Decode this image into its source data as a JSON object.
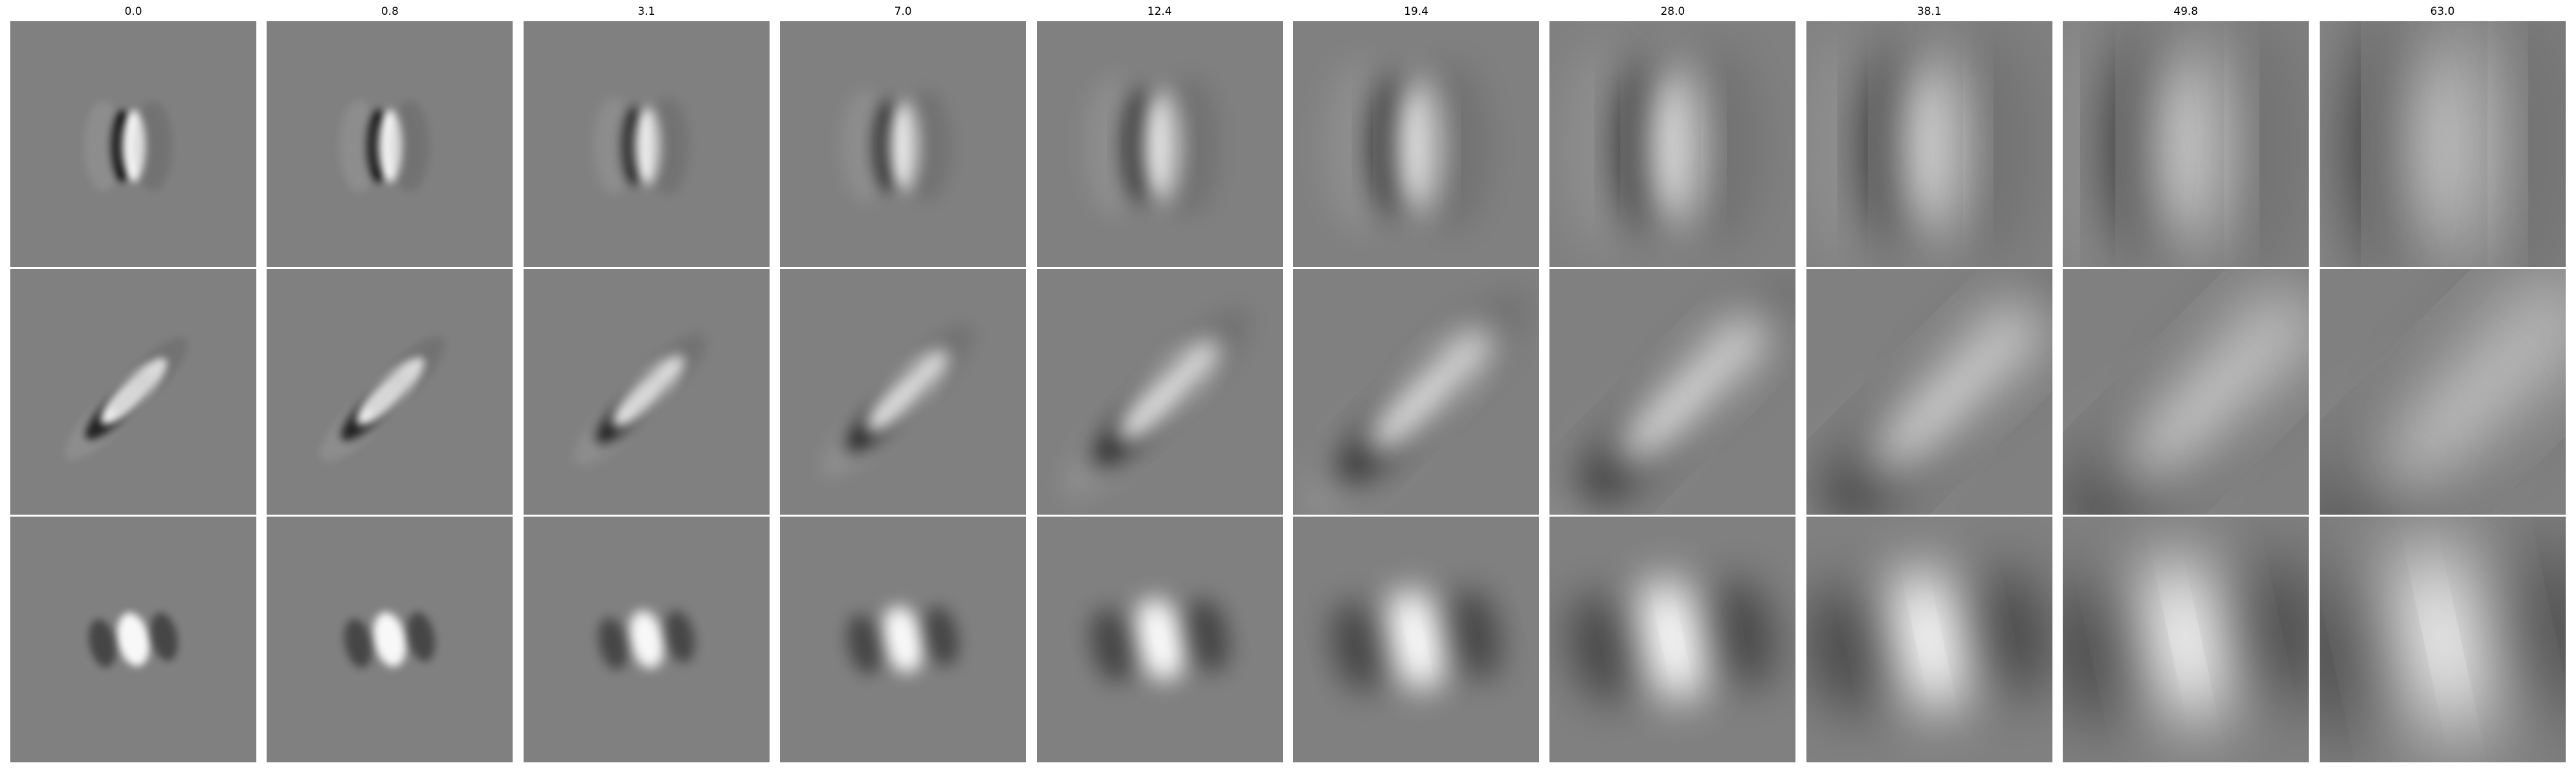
{
  "figure": {
    "column_titles": [
      "0.0",
      "0.8",
      "3.1",
      "7.0",
      "12.4",
      "19.4",
      "28.0",
      "38.1",
      "49.8",
      "63.0"
    ],
    "rows": [
      {
        "name": "row-1",
        "pattern": "vertical-odd",
        "panels": [
          {
            "blur": 0.0,
            "spread": 1.0,
            "contrast": 1.0
          },
          {
            "blur": 0.8,
            "spread": 1.02,
            "contrast": 1.0
          },
          {
            "blur": 3.1,
            "spread": 1.08,
            "contrast": 1.0
          },
          {
            "blur": 7.0,
            "spread": 1.25,
            "contrast": 1.0
          },
          {
            "blur": 12.4,
            "spread": 1.55,
            "contrast": 1.0
          },
          {
            "blur": 19.4,
            "spread": 1.9,
            "contrast": 1.0
          },
          {
            "blur": 28.0,
            "spread": 2.3,
            "contrast": 1.0
          },
          {
            "blur": 38.1,
            "spread": 2.7,
            "contrast": 1.0
          },
          {
            "blur": 49.8,
            "spread": 3.1,
            "contrast": 1.0
          },
          {
            "blur": 63.0,
            "spread": 3.6,
            "contrast": 1.0
          }
        ]
      },
      {
        "name": "row-2",
        "pattern": "diagonal-odd",
        "panels": [
          {
            "blur": 0.0,
            "spread": 1.0,
            "contrast": 1.0
          },
          {
            "blur": 0.8,
            "spread": 1.02,
            "contrast": 1.0
          },
          {
            "blur": 3.1,
            "spread": 1.08,
            "contrast": 1.0
          },
          {
            "blur": 7.0,
            "spread": 1.25,
            "contrast": 1.0
          },
          {
            "blur": 12.4,
            "spread": 1.55,
            "contrast": 1.0
          },
          {
            "blur": 19.4,
            "spread": 1.9,
            "contrast": 1.0
          },
          {
            "blur": 28.0,
            "spread": 2.3,
            "contrast": 1.0
          },
          {
            "blur": 38.1,
            "spread": 2.7,
            "contrast": 1.0
          },
          {
            "blur": 49.8,
            "spread": 3.1,
            "contrast": 1.0
          },
          {
            "blur": 63.0,
            "spread": 3.6,
            "contrast": 1.0
          }
        ]
      },
      {
        "name": "row-3",
        "pattern": "center-even",
        "panels": [
          {
            "blur": 0.0,
            "spread": 1.0,
            "contrast": 1.0
          },
          {
            "blur": 0.8,
            "spread": 1.02,
            "contrast": 1.0
          },
          {
            "blur": 3.1,
            "spread": 1.08,
            "contrast": 1.0
          },
          {
            "blur": 7.0,
            "spread": 1.25,
            "contrast": 1.0
          },
          {
            "blur": 12.4,
            "spread": 1.55,
            "contrast": 1.0
          },
          {
            "blur": 19.4,
            "spread": 1.9,
            "contrast": 1.0
          },
          {
            "blur": 28.0,
            "spread": 2.3,
            "contrast": 1.0
          },
          {
            "blur": 38.1,
            "spread": 2.7,
            "contrast": 1.0
          },
          {
            "blur": 49.8,
            "spread": 3.1,
            "contrast": 1.0
          },
          {
            "blur": 63.0,
            "spread": 3.6,
            "contrast": 1.0
          }
        ]
      }
    ],
    "colors": {
      "background": "#ffffff",
      "gray": "#808080",
      "dark": "#000000",
      "light": "#ffffff"
    }
  }
}
